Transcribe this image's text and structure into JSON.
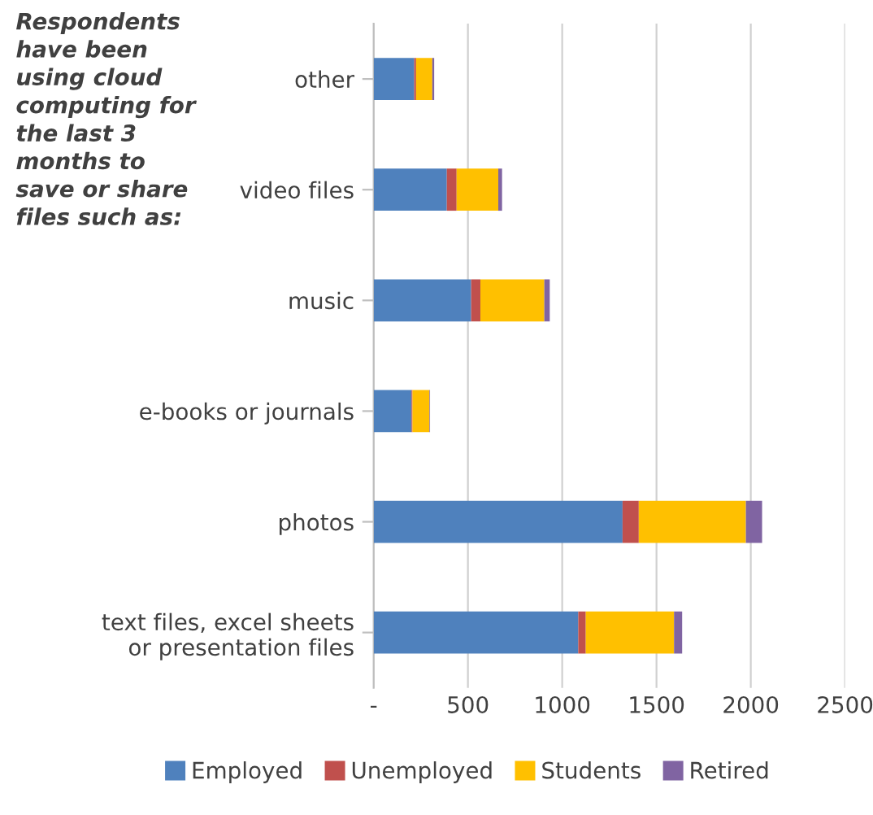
{
  "chart_data": {
    "type": "bar",
    "orientation": "horizontal",
    "stacked": true,
    "title": "Respondents have been using cloud computing for the last 3 months to save or share files such as:",
    "categories": [
      "other",
      "video files",
      "music",
      "e-books or journals",
      "photos",
      "text files, excel sheets or presentation files"
    ],
    "series": [
      {
        "name": "Employed",
        "color": "#4f81bd",
        "values": [
          215,
          388,
          517,
          201,
          1320,
          1085
        ]
      },
      {
        "name": "Unemployed",
        "color": "#c0504d",
        "values": [
          10,
          52,
          49,
          5,
          86,
          40
        ]
      },
      {
        "name": "Students",
        "color": "#ffc000",
        "values": [
          86,
          221,
          339,
          90,
          568,
          468
        ]
      },
      {
        "name": "Retired",
        "color": "#8064a2",
        "values": [
          10,
          20,
          29,
          3,
          86,
          43
        ]
      }
    ],
    "xlim": [
      0,
      2500
    ],
    "xticks": [
      {
        "value": 0,
        "label": "-"
      },
      500,
      1000,
      1500,
      2000,
      2500
    ],
    "grid": "x",
    "legend": "bottom"
  }
}
